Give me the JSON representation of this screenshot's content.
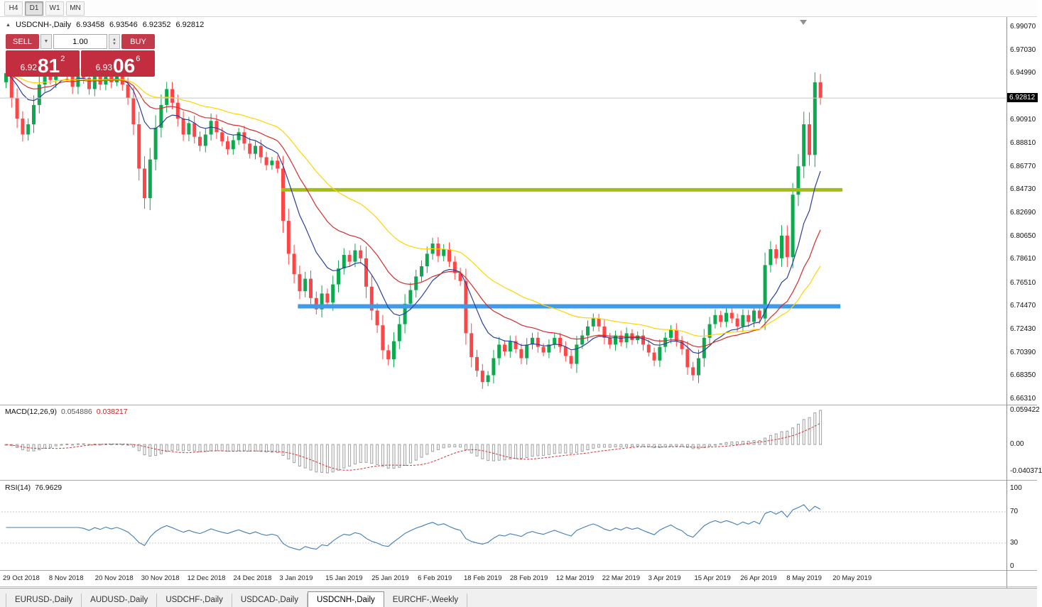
{
  "toolbar": {
    "timeframes": [
      {
        "label": "H4",
        "active": false
      },
      {
        "label": "D1",
        "active": true
      },
      {
        "label": "W1",
        "active": false
      },
      {
        "label": "MN",
        "active": false
      }
    ]
  },
  "chart_header": {
    "marker_icon": "▲",
    "symbol_period": "USDCNH-,Daily",
    "open": "6.93458",
    "high": "6.93546",
    "low": "6.92352",
    "close": "6.92812"
  },
  "trade": {
    "sell_label": "SELL",
    "buy_label": "BUY",
    "volume": "1.00",
    "icons": {
      "menu_down": "▼",
      "spin_up": "▲",
      "spin_down": "▼"
    },
    "bid": {
      "prefix": "6.92",
      "big": "81",
      "sup": "2"
    },
    "ask": {
      "prefix": "6.93",
      "big": "06",
      "sup": "6"
    }
  },
  "price_axis": {
    "labels": [
      "6.99070",
      "6.97030",
      "6.94990",
      "6.90910",
      "6.88810",
      "6.86770",
      "6.84730",
      "6.82690",
      "6.80650",
      "6.78610",
      "6.76510",
      "6.74470",
      "6.72430",
      "6.70390",
      "6.68350",
      "6.66310"
    ],
    "current": "6.92812"
  },
  "macd": {
    "header": "MACD(12,26,9)",
    "value_main": "0.054886",
    "value_signal": "0.038217",
    "axis_max": "0.059422",
    "axis_zero": "0.00",
    "axis_min": "-0.040371"
  },
  "rsi": {
    "header": "RSI(14)",
    "value": "76.9629",
    "axis": [
      "100",
      "70",
      "30",
      "0"
    ],
    "levels": [
      70,
      30
    ]
  },
  "date_axis": {
    "labels": [
      "29 Oct 2018",
      "8 Nov 2018",
      "20 Nov 2018",
      "30 Nov 2018",
      "12 Dec 2018",
      "24 Dec 2018",
      "3 Jan 2019",
      "15 Jan 2019",
      "25 Jan 2019",
      "6 Feb 2019",
      "18 Feb 2019",
      "28 Feb 2019",
      "12 Mar 2019",
      "22 Mar 2019",
      "3 Apr 2019",
      "15 Apr 2019",
      "26 Apr 2019",
      "8 May 2019",
      "20 May 2019"
    ]
  },
  "tabs": [
    {
      "label": "EURUSD-,Daily",
      "active": false
    },
    {
      "label": "AUDUSD-,Daily",
      "active": false
    },
    {
      "label": "USDCHF-,Daily",
      "active": false
    },
    {
      "label": "USDCAD-,Daily",
      "active": false
    },
    {
      "label": "USDCNH-,Daily",
      "active": true
    },
    {
      "label": "EURCHF-,Weekly",
      "active": false
    }
  ],
  "colors": {
    "up": "#0ca94e",
    "down": "#ff4545",
    "ma_fast": "#2b3f9e",
    "ma_mid": "#d62b2b",
    "ma_slow": "#ffd400",
    "resistance": "#a2be12",
    "support": "#3e9bea",
    "macd_hist": "#9e9e9e",
    "macd_signal": "#e03030",
    "rsi_line": "#3f7cb6",
    "sell_buy": "#c23b4b",
    "price_box": "#c22e3f",
    "current_price_line": "#c8c8c8"
  },
  "chart_data": {
    "type": "candlestick",
    "symbol": "USDCNH-",
    "timeframe": "Daily",
    "title": "USDCNH-,Daily",
    "ohlc_current": {
      "open": 6.93458,
      "high": 6.93546,
      "low": 6.92352,
      "close": 6.92812
    },
    "y_range": [
      6.6631,
      6.9907
    ],
    "first_open": 6.942,
    "closes": [
      6.95,
      6.928,
      6.91,
      6.896,
      6.905,
      6.922,
      6.94,
      6.952,
      6.944,
      6.958,
      6.964,
      6.95,
      6.938,
      6.954,
      6.946,
      6.936,
      6.948,
      6.94,
      6.95,
      6.942,
      6.948,
      6.94,
      6.928,
      6.905,
      6.866,
      6.84,
      6.874,
      6.902,
      6.922,
      6.936,
      6.924,
      6.91,
      6.896,
      6.906,
      6.894,
      6.886,
      6.896,
      6.908,
      6.898,
      6.89,
      6.883,
      6.891,
      6.898,
      6.888,
      6.879,
      6.886,
      6.876,
      6.869,
      6.873,
      6.866,
      6.82,
      6.791,
      6.773,
      6.758,
      6.769,
      6.752,
      6.742,
      6.756,
      6.748,
      6.764,
      6.778,
      6.79,
      6.784,
      6.794,
      6.787,
      6.762,
      6.741,
      6.728,
      6.706,
      6.698,
      6.714,
      6.729,
      6.747,
      6.759,
      6.771,
      6.78,
      6.791,
      6.8,
      6.789,
      6.795,
      6.784,
      6.774,
      6.767,
      6.721,
      6.7,
      6.688,
      6.678,
      6.684,
      6.699,
      6.711,
      6.705,
      6.714,
      6.707,
      6.699,
      6.711,
      6.717,
      6.709,
      6.704,
      6.711,
      6.717,
      6.709,
      6.701,
      6.694,
      6.711,
      6.719,
      6.727,
      6.734,
      6.727,
      6.717,
      6.711,
      6.719,
      6.713,
      6.721,
      6.715,
      6.719,
      6.711,
      6.704,
      6.697,
      6.709,
      6.717,
      6.724,
      6.714,
      6.707,
      6.691,
      6.684,
      6.699,
      6.717,
      6.729,
      6.737,
      6.731,
      6.739,
      6.734,
      6.727,
      6.737,
      6.731,
      6.741,
      6.734,
      6.781,
      6.795,
      6.787,
      6.807,
      6.788,
      6.843,
      6.868,
      6.905,
      6.878,
      6.942,
      6.92812
    ],
    "objects": {
      "resistance_line": {
        "price": 6.8473,
        "from_bar": 50,
        "to_x": 1186,
        "thickness": 5
      },
      "support_line": {
        "price": 6.7447,
        "from_bar": 53,
        "to_x": 1183,
        "thickness": 6
      }
    },
    "moving_averages": [
      {
        "name": "fast",
        "type": "ema",
        "period": 10,
        "color_key": "ma_fast"
      },
      {
        "name": "mid",
        "type": "ema",
        "period": 22,
        "color_key": "ma_mid"
      },
      {
        "name": "slow",
        "type": "ema",
        "period": 40,
        "color_key": "ma_slow"
      }
    ],
    "indicators": {
      "macd": {
        "fast": 12,
        "slow": 26,
        "signal": 9,
        "current_main": 0.054886,
        "current_signal": 0.038217,
        "axis": [
          0.059422,
          0.0,
          -0.040371
        ]
      },
      "rsi": {
        "period": 14,
        "current": 76.9629,
        "levels": [
          30,
          70
        ],
        "axis": [
          100,
          70,
          30,
          0
        ]
      }
    },
    "current_price": 6.92812
  }
}
